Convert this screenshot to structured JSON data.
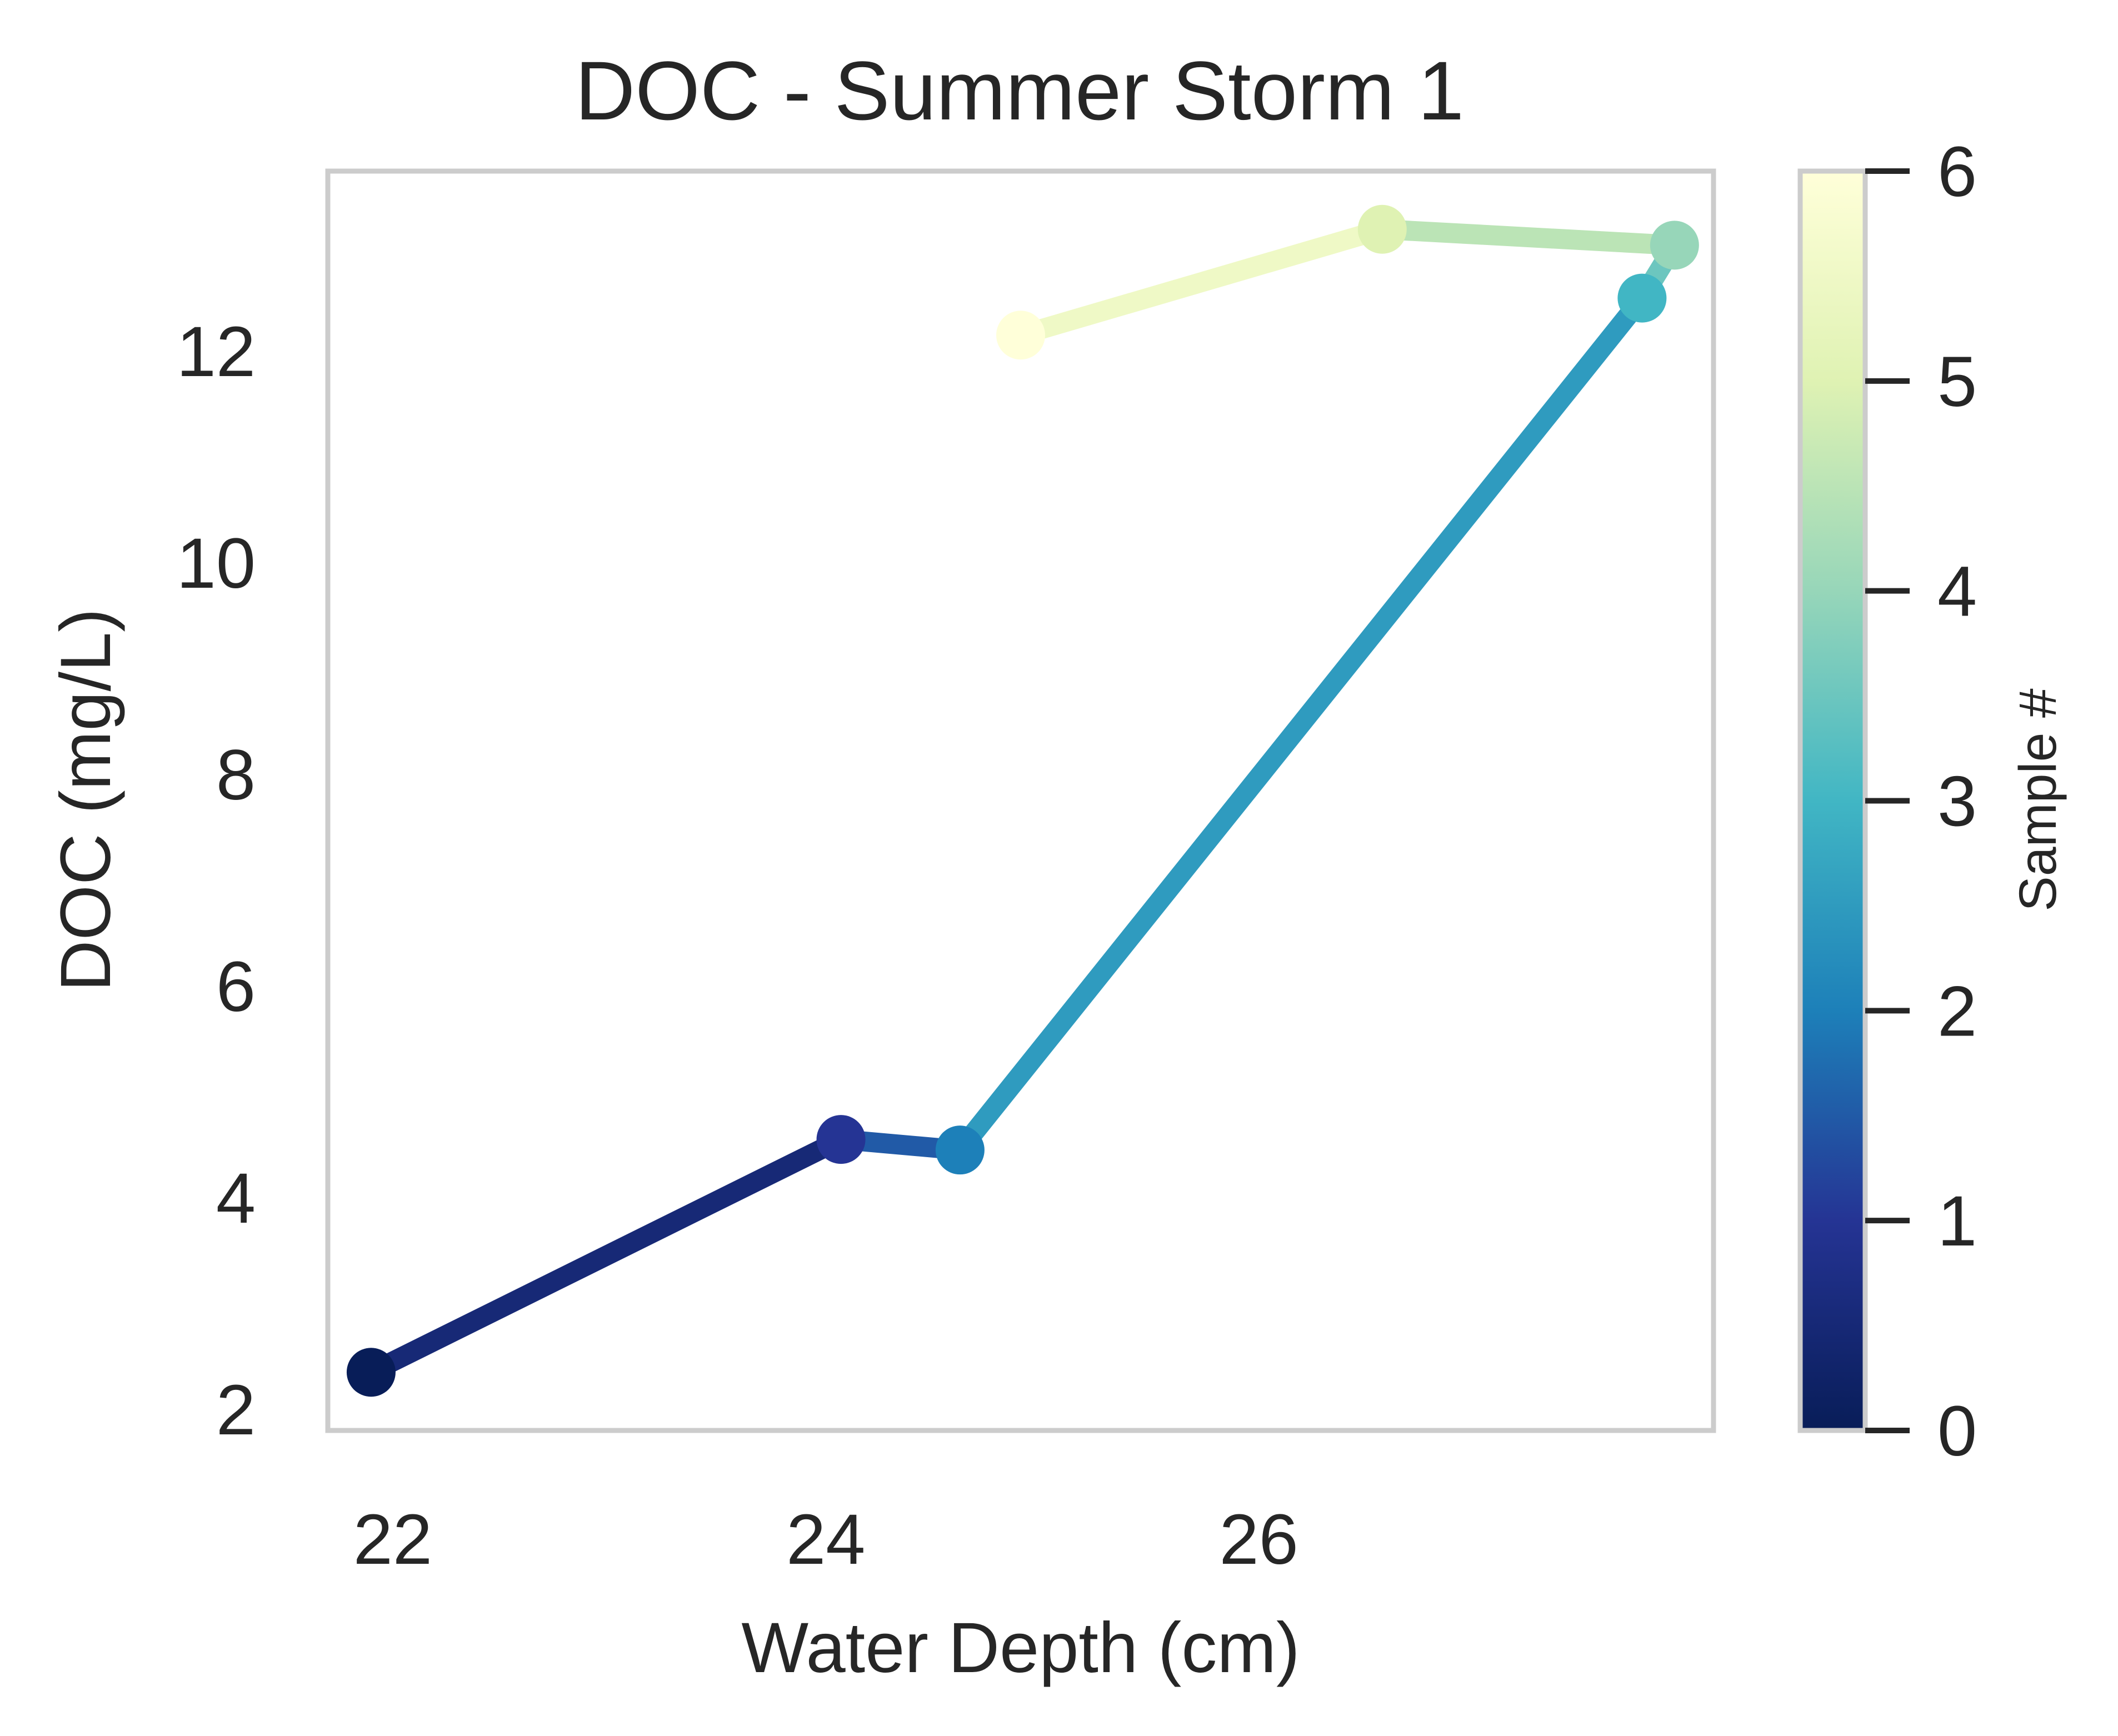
{
  "chart_data": {
    "type": "line",
    "title": "DOC - Summer Storm 1",
    "xlabel": "Water Depth (cm)",
    "ylabel": "DOC (mg/L)",
    "xlim": [
      21.7,
      28.1
    ],
    "ylim": [
      1.8,
      13.7
    ],
    "xticks": [
      22,
      24,
      26
    ],
    "yticks": [
      2,
      4,
      6,
      8,
      10,
      12
    ],
    "grid": false,
    "line_colored_by": "Sample #",
    "series": [
      {
        "x": [
          21.9,
          24.07,
          24.62,
          27.77,
          27.92,
          26.57,
          24.9
        ],
        "y": [
          2.35,
          4.55,
          4.45,
          12.5,
          13.0,
          13.15,
          12.15
        ],
        "sample": [
          0,
          1,
          2,
          3,
          4,
          5,
          6
        ]
      }
    ],
    "colorbar": {
      "label": "Sample #",
      "range": [
        0,
        6
      ],
      "ticks": [
        0,
        1,
        2,
        3,
        4,
        5,
        6
      ],
      "colormap": "YlGnBu_r",
      "stops": [
        "#081d58",
        "#253494",
        "#1d80b9",
        "#41b6c4",
        "#97d6b9",
        "#dff2b3",
        "#ffffd9"
      ]
    }
  }
}
